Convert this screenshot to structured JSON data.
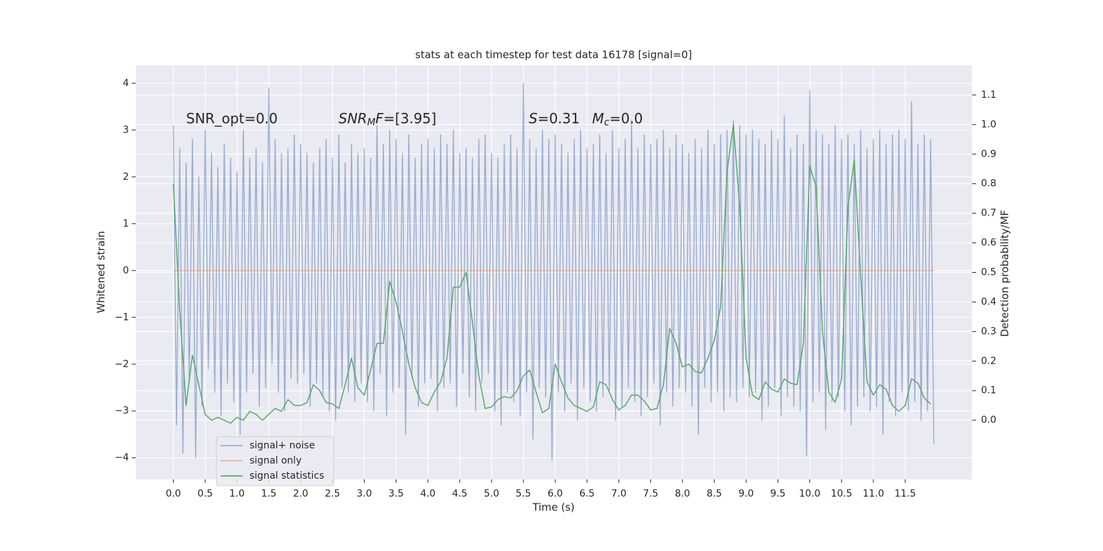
{
  "chart_data": {
    "type": "line",
    "title": "stats at each timestep for test data 16178 [signal=0]",
    "xlabel": "Time (s)",
    "ylabel": "Whitened strain",
    "y2label": "Detection probability/MF",
    "xlim": [
      -0.59,
      12.55
    ],
    "ylim": [
      -4.46,
      4.38
    ],
    "y2lim": [
      -0.2,
      1.2
    ],
    "grid": true,
    "legend": "best",
    "xticks": [
      {
        "value": 0,
        "label": "0.0"
      },
      {
        "value": 0.5,
        "label": "0.5"
      },
      {
        "value": 1,
        "label": "1.0"
      },
      {
        "value": 1.5,
        "label": "1.5"
      },
      {
        "value": 2,
        "label": "2.0"
      },
      {
        "value": 2.5,
        "label": "2.5"
      },
      {
        "value": 3,
        "label": "3.0"
      },
      {
        "value": 3.5,
        "label": "3.5"
      },
      {
        "value": 4,
        "label": "4.0"
      },
      {
        "value": 4.5,
        "label": "4.5"
      },
      {
        "value": 5,
        "label": "5.0"
      },
      {
        "value": 5.5,
        "label": "5.5"
      },
      {
        "value": 6,
        "label": "6.0"
      },
      {
        "value": 6.5,
        "label": "6.5"
      },
      {
        "value": 7,
        "label": "7.0"
      },
      {
        "value": 7.5,
        "label": "7.5"
      },
      {
        "value": 8,
        "label": "8.0"
      },
      {
        "value": 8.5,
        "label": "8.5"
      },
      {
        "value": 9,
        "label": "9.0"
      },
      {
        "value": 9.5,
        "label": "9.5"
      },
      {
        "value": 10,
        "label": "10.0"
      },
      {
        "value": 10.5,
        "label": "10.5"
      },
      {
        "value": 11,
        "label": "11.0"
      },
      {
        "value": 11.5,
        "label": "11.5"
      }
    ],
    "yticks": [
      {
        "value": -4,
        "label": "−4"
      },
      {
        "value": -3,
        "label": "−3"
      },
      {
        "value": -2,
        "label": "−2"
      },
      {
        "value": -1,
        "label": "−1"
      },
      0,
      1,
      2,
      3,
      4
    ],
    "y2ticks": [
      {
        "value": 0,
        "label": "0.0"
      },
      {
        "value": 0.1,
        "label": "0.1"
      },
      {
        "value": 0.2,
        "label": "0.2"
      },
      {
        "value": 0.3,
        "label": "0.3"
      },
      {
        "value": 0.4,
        "label": "0.4"
      },
      {
        "value": 0.5,
        "label": "0.5"
      },
      {
        "value": 0.6,
        "label": "0.6"
      },
      {
        "value": 0.7,
        "label": "0.7"
      },
      {
        "value": 0.8,
        "label": "0.8"
      },
      {
        "value": 0.9,
        "label": "0.9"
      },
      {
        "value": 1,
        "label": "1.0"
      },
      {
        "value": 1.1,
        "label": "1.1"
      }
    ],
    "annotations": [
      {
        "parts": [
          {
            "text": "SNR_opt=0.0",
            "style": "normal"
          }
        ]
      },
      {
        "parts": [
          {
            "text": "SNR",
            "style": "italic"
          },
          {
            "text": "M",
            "style": "sub"
          },
          {
            "text": "F",
            "style": "italic"
          },
          {
            "text": "=[3.95]",
            "style": "normal"
          }
        ]
      },
      {
        "parts": [
          {
            "text": "S",
            "style": "italic"
          },
          {
            "text": "=0.31",
            "style": "normal"
          }
        ]
      },
      {
        "parts": [
          {
            "text": "M",
            "style": "italic"
          },
          {
            "text": "c",
            "style": "sub"
          },
          {
            "text": "=0.0",
            "style": "normal"
          }
        ]
      }
    ],
    "series": [
      {
        "name": "signal+ noise",
        "color": "#4c72b0",
        "opacity": 0.5,
        "axis": "y",
        "x": [
          0,
          0.05,
          0.1,
          0.15,
          0.2,
          0.25,
          0.3,
          0.35,
          0.4,
          0.45,
          0.5,
          0.55,
          0.6,
          0.65,
          0.7,
          0.75,
          0.8,
          0.85,
          0.9,
          0.95,
          1,
          1.05,
          1.1,
          1.15,
          1.2,
          1.25,
          1.3,
          1.35,
          1.4,
          1.45,
          1.5,
          1.55,
          1.6,
          1.65,
          1.7,
          1.75,
          1.8,
          1.85,
          1.9,
          1.95,
          2,
          2.05,
          2.1,
          2.15,
          2.2,
          2.25,
          2.3,
          2.35,
          2.4,
          2.45,
          2.5,
          2.55,
          2.6,
          2.65,
          2.7,
          2.75,
          2.8,
          2.85,
          2.9,
          2.95,
          3,
          3.05,
          3.1,
          3.15,
          3.2,
          3.25,
          3.3,
          3.35,
          3.4,
          3.45,
          3.5,
          3.55,
          3.6,
          3.65,
          3.7,
          3.75,
          3.8,
          3.85,
          3.9,
          3.95,
          4,
          4.05,
          4.1,
          4.15,
          4.2,
          4.25,
          4.3,
          4.35,
          4.4,
          4.45,
          4.5,
          4.55,
          4.6,
          4.65,
          4.7,
          4.75,
          4.8,
          4.85,
          4.9,
          4.95,
          5,
          5.05,
          5.1,
          5.15,
          5.2,
          5.25,
          5.3,
          5.35,
          5.4,
          5.45,
          5.5,
          5.55,
          5.6,
          5.65,
          5.7,
          5.75,
          5.8,
          5.85,
          5.9,
          5.95,
          6,
          6.05,
          6.1,
          6.15,
          6.2,
          6.25,
          6.3,
          6.35,
          6.4,
          6.45,
          6.5,
          6.55,
          6.6,
          6.65,
          6.7,
          6.75,
          6.8,
          6.85,
          6.9,
          6.95,
          7,
          7.05,
          7.1,
          7.15,
          7.2,
          7.25,
          7.3,
          7.35,
          7.4,
          7.45,
          7.5,
          7.55,
          7.6,
          7.65,
          7.7,
          7.75,
          7.8,
          7.85,
          7.9,
          7.95,
          8,
          8.05,
          8.1,
          8.15,
          8.2,
          8.25,
          8.3,
          8.35,
          8.4,
          8.45,
          8.5,
          8.55,
          8.6,
          8.65,
          8.7,
          8.75,
          8.8,
          8.85,
          8.9,
          8.95,
          9,
          9.05,
          9.1,
          9.15,
          9.2,
          9.25,
          9.3,
          9.35,
          9.4,
          9.45,
          9.5,
          9.55,
          9.6,
          9.65,
          9.7,
          9.75,
          9.8,
          9.85,
          9.9,
          9.95,
          10,
          10.05,
          10.1,
          10.15,
          10.2,
          10.25,
          10.3,
          10.35,
          10.4,
          10.45,
          10.5,
          10.55,
          10.6,
          10.65,
          10.7,
          10.75,
          10.8,
          10.85,
          10.9,
          10.95,
          11,
          11.05,
          11.1,
          11.15,
          11.2,
          11.25,
          11.3,
          11.35,
          11.4,
          11.45,
          11.5,
          11.55,
          11.6,
          11.65,
          11.7,
          11.75,
          11.8,
          11.85,
          11.9,
          11.95
        ],
        "values": [
          3.1,
          -3.3,
          2.6,
          -3.9,
          2.3,
          -2.4,
          2.8,
          -4.0,
          2.0,
          -2.9,
          3.0,
          -2.1,
          2.5,
          -2.6,
          2.2,
          -3.1,
          2.7,
          -2.4,
          2.4,
          -2.8,
          2.1,
          -3.5,
          3.0,
          -2.6,
          2.4,
          -2.2,
          2.6,
          -2.9,
          2.3,
          -2.5,
          3.9,
          -2.0,
          2.8,
          -2.6,
          2.5,
          -3.0,
          2.6,
          -2.3,
          2.9,
          -2.4,
          2.7,
          -2.2,
          2.5,
          -2.9,
          2.3,
          -2.4,
          2.6,
          -2.7,
          2.8,
          -3.0,
          2.4,
          -3.2,
          2.9,
          -2.5,
          2.3,
          -2.6,
          2.7,
          -2.8,
          2.5,
          -2.4,
          2.6,
          -2.8,
          2.4,
          -3.0,
          3.1,
          -2.2,
          2.7,
          -3.1,
          3.0,
          -2.6,
          2.8,
          -2.5,
          2.5,
          -3.5,
          2.9,
          -2.3,
          2.4,
          -2.9,
          2.7,
          -2.4,
          2.8,
          -2.3,
          2.6,
          -3.0,
          2.9,
          -2.5,
          2.7,
          -2.4,
          3.0,
          -2.9,
          2.5,
          -2.2,
          2.6,
          -2.7,
          2.4,
          -3.0,
          2.8,
          -2.4,
          2.9,
          -2.2,
          2.5,
          -3.0,
          2.4,
          -3.3,
          2.7,
          -2.6,
          2.9,
          -2.8,
          2.6,
          -3.1,
          4.0,
          -2.6,
          2.8,
          -3.6,
          2.6,
          -2.5,
          3.0,
          -2.7,
          2.8,
          -4.05,
          2.9,
          -2.6,
          2.7,
          -3.0,
          2.5,
          -2.4,
          2.8,
          -3.2,
          3.0,
          -2.5,
          2.6,
          -2.8,
          2.7,
          -3.0,
          2.9,
          -2.7,
          2.5,
          -2.6,
          3.0,
          -3.2,
          2.6,
          -2.9,
          2.8,
          -2.5,
          3.2,
          -2.8,
          2.6,
          -3.1,
          2.9,
          -2.7,
          2.7,
          -2.4,
          2.8,
          -3.3,
          3.0,
          -2.6,
          2.6,
          -2.9,
          2.9,
          -2.5,
          2.7,
          -2.6,
          2.5,
          -2.9,
          2.8,
          -3.5,
          2.6,
          -2.5,
          3.0,
          -2.8,
          2.7,
          -2.6,
          2.9,
          -3.0,
          3.0,
          -2.7,
          3.2,
          -2.8,
          3.1,
          -2.5,
          2.9,
          -2.7,
          3.0,
          -2.6,
          2.8,
          -3.2,
          2.7,
          -2.9,
          3.0,
          -2.5,
          2.8,
          -3.1,
          3.3,
          -2.7,
          2.6,
          -2.9,
          2.9,
          -3.0,
          2.7,
          -3.95,
          3.85,
          -2.8,
          3.0,
          -2.6,
          2.9,
          -3.4,
          2.7,
          -2.8,
          3.1,
          -2.7,
          2.8,
          -3.0,
          2.9,
          -3.3,
          2.7,
          -2.9,
          3.0,
          -2.7,
          2.6,
          -3.0,
          2.8,
          -2.9,
          3.0,
          -3.5,
          2.7,
          -2.8,
          2.9,
          -3.1,
          3.0,
          -2.6,
          2.8,
          -3.0,
          3.6,
          -2.8,
          2.7,
          -3.2,
          2.9,
          -3.0,
          2.8,
          -3.7
        ]
      },
      {
        "name": "signal only",
        "color": "#dd8452",
        "opacity": 0.5,
        "axis": "y",
        "x": [
          0,
          11.95
        ],
        "values": [
          0,
          0
        ]
      },
      {
        "name": "signal statistics",
        "color": "#55a868",
        "opacity": 1,
        "axis": "y2",
        "x": [
          0,
          0.1,
          0.2,
          0.3,
          0.4,
          0.5,
          0.6,
          0.7,
          0.8,
          0.9,
          1,
          1.1,
          1.2,
          1.3,
          1.4,
          1.5,
          1.6,
          1.7,
          1.8,
          1.9,
          2,
          2.1,
          2.2,
          2.3,
          2.4,
          2.5,
          2.6,
          2.7,
          2.8,
          2.9,
          3,
          3.1,
          3.2,
          3.3,
          3.4,
          3.5,
          3.6,
          3.7,
          3.8,
          3.9,
          4,
          4.1,
          4.2,
          4.3,
          4.4,
          4.5,
          4.6,
          4.7,
          4.8,
          4.9,
          5,
          5.1,
          5.2,
          5.3,
          5.4,
          5.5,
          5.6,
          5.7,
          5.8,
          5.9,
          6,
          6.1,
          6.2,
          6.3,
          6.4,
          6.5,
          6.6,
          6.7,
          6.8,
          6.9,
          7,
          7.1,
          7.2,
          7.3,
          7.4,
          7.5,
          7.6,
          7.7,
          7.8,
          7.9,
          8,
          8.1,
          8.2,
          8.3,
          8.4,
          8.5,
          8.6,
          8.7,
          8.8,
          8.9,
          9,
          9.1,
          9.2,
          9.3,
          9.4,
          9.5,
          9.6,
          9.7,
          9.8,
          9.9,
          10,
          10.1,
          10.2,
          10.3,
          10.4,
          10.5,
          10.6,
          10.7,
          10.8,
          10.9,
          11,
          11.1,
          11.2,
          11.3,
          11.4,
          11.5,
          11.6,
          11.7,
          11.8,
          11.9
        ],
        "values": [
          0.8,
          0.37,
          0.05,
          0.22,
          0.12,
          0.02,
          0.0,
          0.01,
          0.0,
          -0.01,
          0.01,
          0.0,
          0.03,
          0.02,
          0.0,
          0.02,
          0.04,
          0.03,
          0.07,
          0.05,
          0.05,
          0.06,
          0.12,
          0.1,
          0.06,
          0.055,
          0.04,
          0.12,
          0.21,
          0.11,
          0.085,
          0.17,
          0.26,
          0.26,
          0.47,
          0.4,
          0.3,
          0.19,
          0.11,
          0.06,
          0.05,
          0.095,
          0.13,
          0.21,
          0.45,
          0.45,
          0.5,
          0.33,
          0.15,
          0.04,
          0.045,
          0.07,
          0.08,
          0.075,
          0.1,
          0.15,
          0.17,
          0.095,
          0.025,
          0.04,
          0.19,
          0.13,
          0.075,
          0.05,
          0.04,
          0.03,
          0.045,
          0.13,
          0.12,
          0.07,
          0.035,
          0.05,
          0.085,
          0.085,
          0.065,
          0.035,
          0.04,
          0.12,
          0.31,
          0.26,
          0.18,
          0.19,
          0.165,
          0.16,
          0.21,
          0.27,
          0.385,
          0.84,
          1.0,
          0.72,
          0.21,
          0.085,
          0.07,
          0.13,
          0.105,
          0.095,
          0.14,
          0.125,
          0.12,
          0.26,
          0.86,
          0.79,
          0.3,
          0.095,
          0.06,
          0.14,
          0.72,
          0.88,
          0.49,
          0.13,
          0.085,
          0.12,
          0.105,
          0.05,
          0.03,
          0.05,
          0.14,
          0.125,
          0.075,
          0.055
        ]
      }
    ]
  }
}
